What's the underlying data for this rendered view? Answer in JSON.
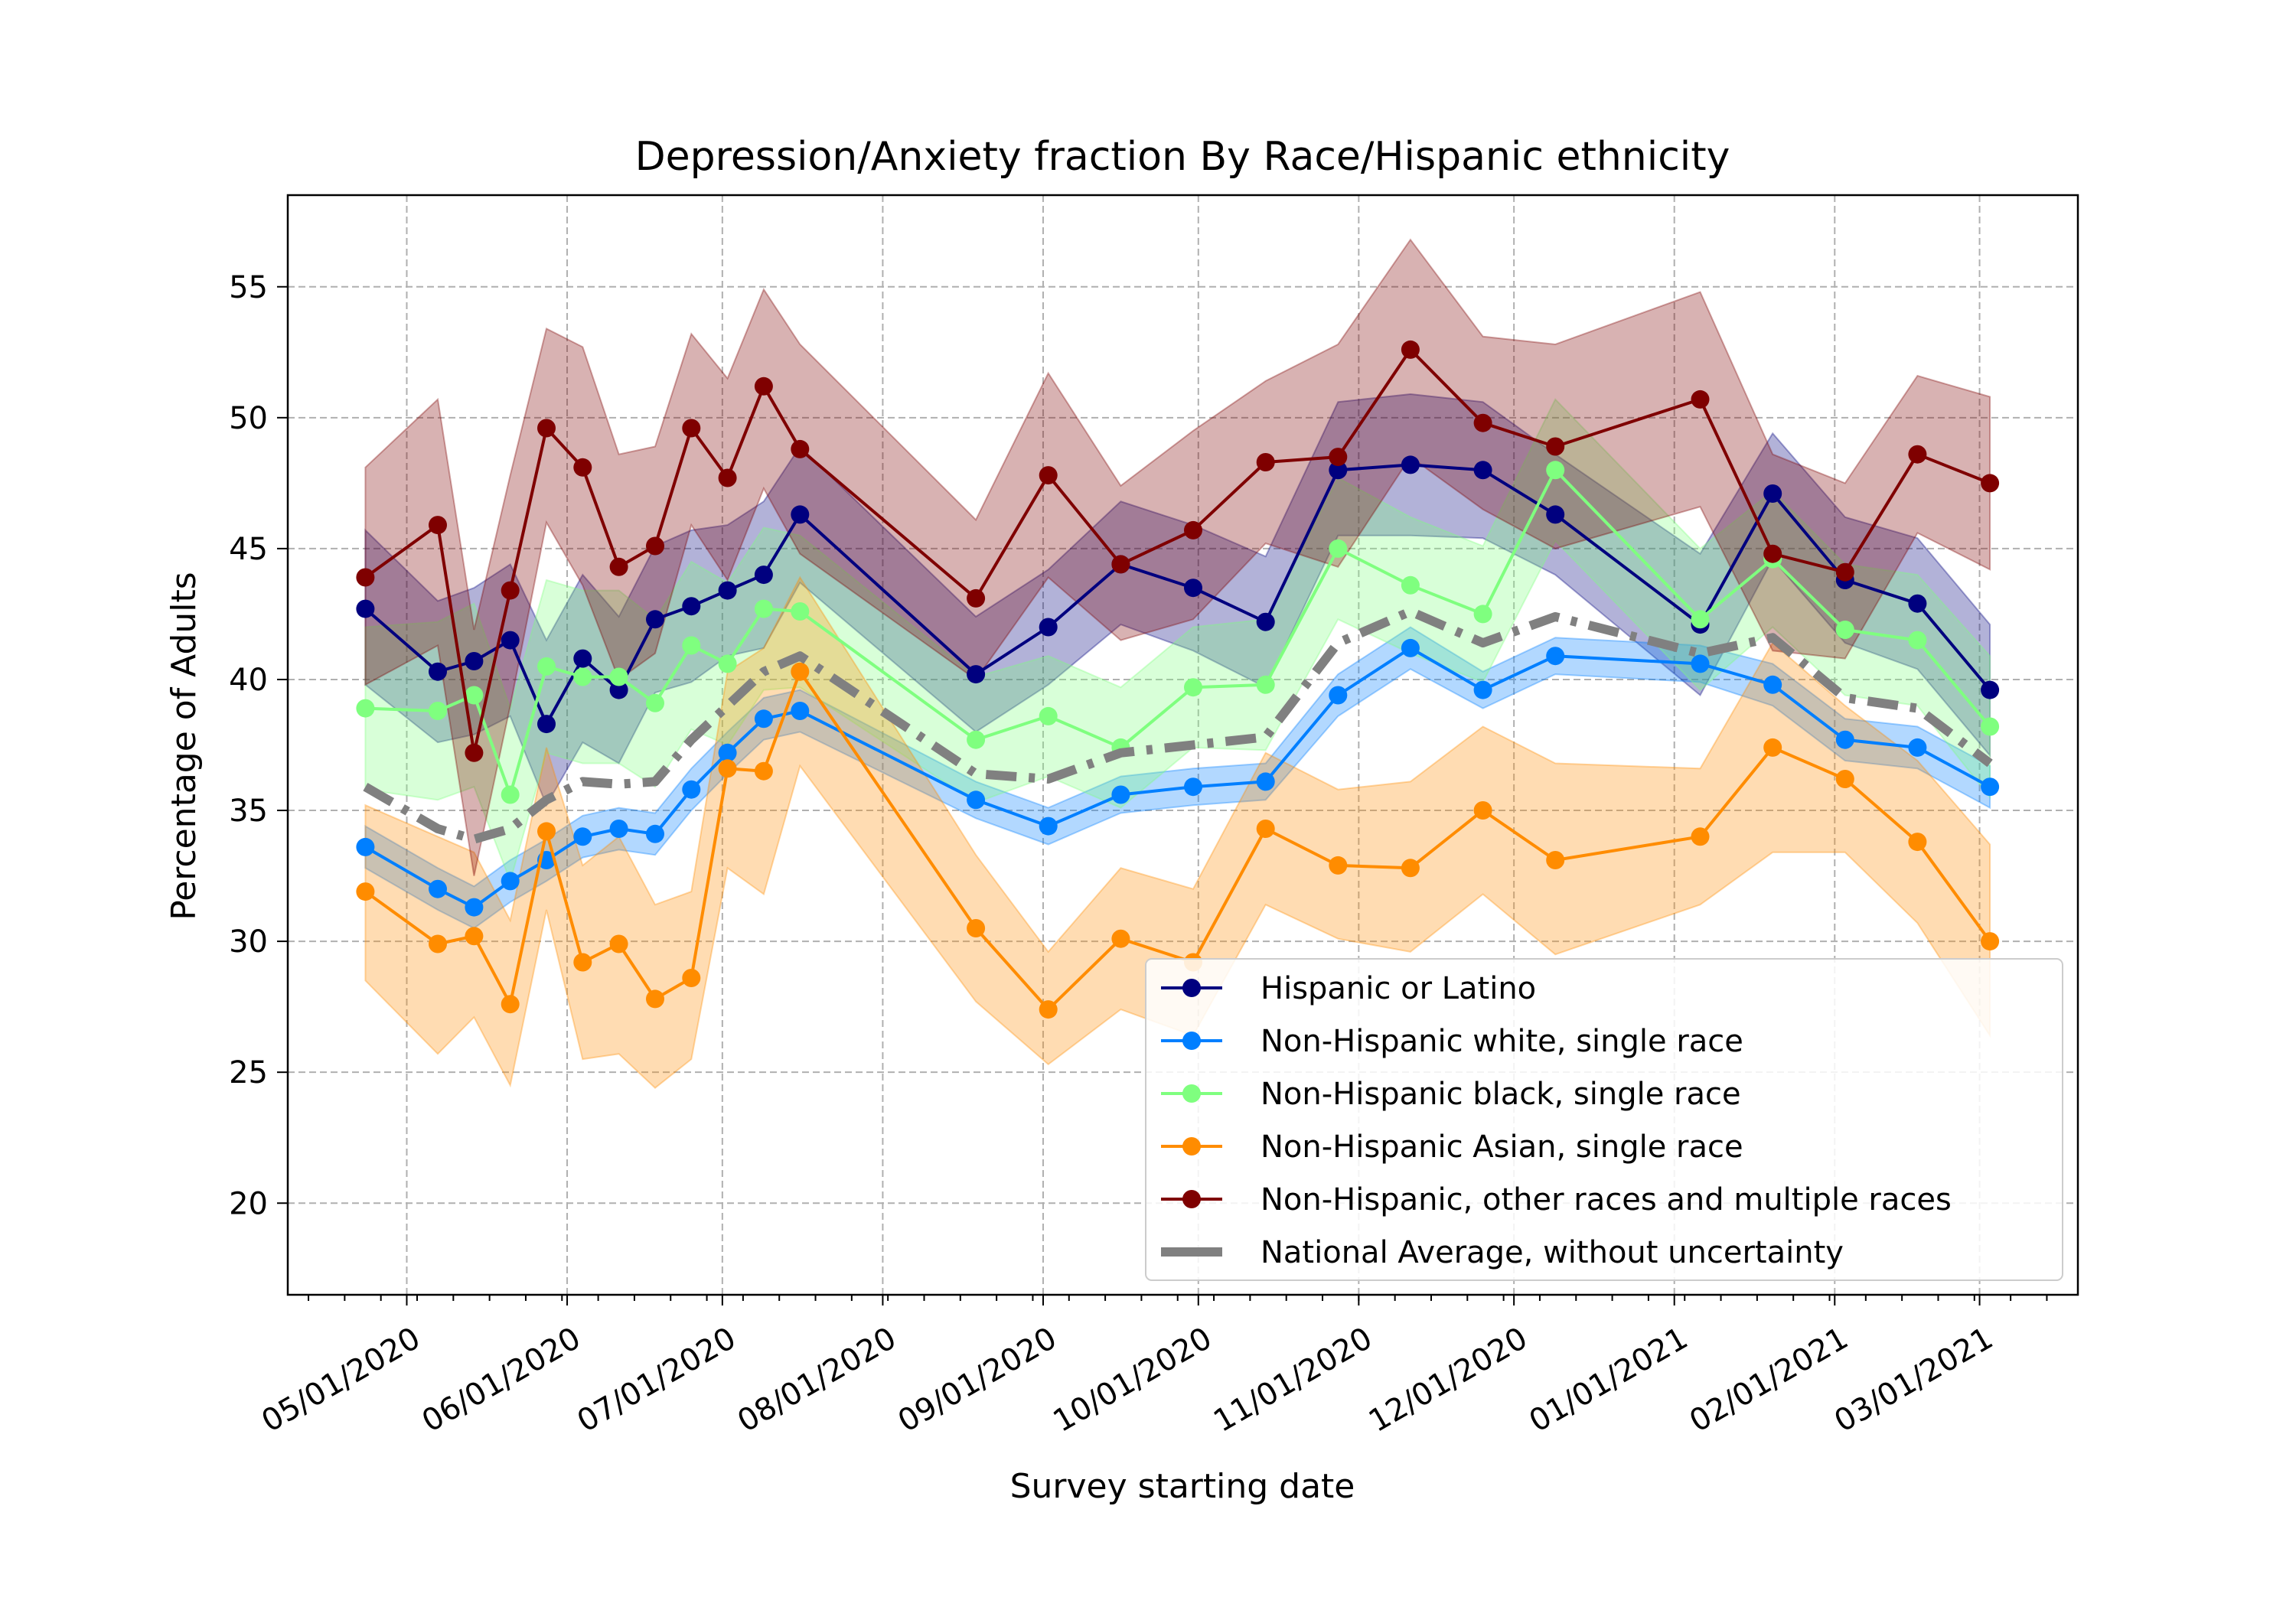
{
  "chart_data": {
    "type": "line",
    "title": "Depression/Anxiety fraction By Race/Hispanic ethnicity",
    "xlabel": "Survey starting date",
    "ylabel": "Percentage of Adults",
    "ylim": [
      16.5,
      58.5
    ],
    "xlim": [
      "2020-04-08",
      "2021-03-20"
    ],
    "grid": true,
    "legend_position": "lower-right",
    "yticks": [
      20,
      25,
      30,
      35,
      40,
      45,
      50,
      55
    ],
    "xticks": [
      {
        "date": "2020-05-01",
        "label": "05/01/2020"
      },
      {
        "date": "2020-06-01",
        "label": "06/01/2020"
      },
      {
        "date": "2020-07-01",
        "label": "07/01/2020"
      },
      {
        "date": "2020-08-01",
        "label": "08/01/2020"
      },
      {
        "date": "2020-09-01",
        "label": "09/01/2020"
      },
      {
        "date": "2020-10-01",
        "label": "10/01/2020"
      },
      {
        "date": "2020-11-01",
        "label": "11/01/2020"
      },
      {
        "date": "2020-12-01",
        "label": "12/01/2020"
      },
      {
        "date": "2021-01-01",
        "label": "01/01/2021"
      },
      {
        "date": "2021-02-01",
        "label": "02/01/2021"
      },
      {
        "date": "2021-03-01",
        "label": "03/01/2021"
      }
    ],
    "x": [
      "2020-04-23",
      "2020-05-07",
      "2020-05-14",
      "2020-05-21",
      "2020-05-28",
      "2020-06-04",
      "2020-06-11",
      "2020-06-18",
      "2020-06-25",
      "2020-07-02",
      "2020-07-09",
      "2020-07-16",
      "2020-08-19",
      "2020-09-02",
      "2020-09-16",
      "2020-09-30",
      "2020-10-14",
      "2020-10-28",
      "2020-11-11",
      "2020-11-25",
      "2020-12-09",
      "2021-01-06",
      "2021-01-20",
      "2021-02-03",
      "2021-02-17",
      "2021-03-03"
    ],
    "series": [
      {
        "name": "Hispanic or Latino",
        "color": "#00007f",
        "values": [
          42.7,
          40.3,
          40.7,
          41.5,
          38.3,
          40.8,
          39.6,
          42.3,
          42.8,
          43.4,
          44.0,
          46.3,
          40.2,
          42.0,
          44.4,
          43.5,
          42.2,
          48.0,
          48.2,
          48.0,
          46.3,
          42.1,
          47.1,
          43.8,
          42.9,
          39.6
        ],
        "lower": [
          39.8,
          37.6,
          37.9,
          38.6,
          35.2,
          37.6,
          36.8,
          39.5,
          39.9,
          40.9,
          41.2,
          43.7,
          38.0,
          39.8,
          42.1,
          41.1,
          39.7,
          45.5,
          45.5,
          45.4,
          44.0,
          39.4,
          44.6,
          41.4,
          40.4,
          37.1
        ],
        "upper": [
          45.7,
          43.0,
          43.5,
          44.4,
          41.5,
          44.0,
          42.4,
          45.1,
          45.7,
          45.9,
          46.8,
          48.9,
          42.4,
          44.2,
          46.8,
          45.9,
          44.7,
          50.6,
          50.9,
          50.6,
          48.6,
          44.8,
          49.4,
          46.2,
          45.4,
          42.1
        ]
      },
      {
        "name": "Non-Hispanic white, single race",
        "color": "#007fff",
        "values": [
          33.6,
          32.0,
          31.3,
          32.3,
          33.1,
          34.0,
          34.3,
          34.1,
          35.8,
          37.2,
          38.5,
          38.8,
          35.4,
          34.4,
          35.6,
          35.9,
          36.1,
          39.4,
          41.2,
          39.6,
          40.9,
          40.6,
          39.8,
          37.7,
          37.4,
          35.9
        ],
        "lower": [
          32.8,
          31.2,
          30.5,
          31.5,
          32.3,
          33.2,
          33.5,
          33.3,
          35.0,
          36.4,
          37.7,
          38.0,
          34.7,
          33.7,
          34.9,
          35.2,
          35.4,
          38.6,
          40.4,
          38.9,
          40.2,
          39.9,
          39.0,
          36.9,
          36.6,
          35.1
        ],
        "upper": [
          34.4,
          32.8,
          32.1,
          33.1,
          33.9,
          34.8,
          35.1,
          34.9,
          36.6,
          38.0,
          39.3,
          39.6,
          36.1,
          35.1,
          36.3,
          36.6,
          36.8,
          40.2,
          42.0,
          40.3,
          41.6,
          41.3,
          40.6,
          38.5,
          38.2,
          36.7
        ]
      },
      {
        "name": "Non-Hispanic black, single race",
        "color": "#7fff7f",
        "values": [
          38.9,
          38.8,
          39.4,
          35.6,
          40.5,
          40.1,
          40.1,
          39.1,
          41.3,
          40.6,
          42.7,
          42.6,
          37.7,
          38.6,
          37.4,
          39.7,
          39.8,
          45.0,
          43.6,
          42.5,
          48.0,
          42.3,
          44.6,
          41.9,
          41.5,
          38.2
        ],
        "lower": [
          35.8,
          35.4,
          35.9,
          32.3,
          37.2,
          36.8,
          36.8,
          35.9,
          38.1,
          37.5,
          39.6,
          39.7,
          35.3,
          36.3,
          35.1,
          37.4,
          37.3,
          42.3,
          41.0,
          39.9,
          45.3,
          39.6,
          42.0,
          39.4,
          39.0,
          35.5
        ],
        "upper": [
          42.0,
          42.2,
          42.9,
          38.9,
          43.8,
          43.4,
          43.4,
          42.3,
          44.5,
          43.7,
          45.8,
          45.5,
          40.1,
          40.9,
          39.7,
          42.0,
          42.3,
          47.7,
          46.2,
          45.1,
          50.7,
          45.0,
          47.2,
          44.4,
          44.0,
          40.9
        ]
      },
      {
        "name": "Non-Hispanic Asian, single race",
        "color": "#ff8c00",
        "values": [
          31.9,
          29.9,
          30.2,
          27.6,
          34.2,
          29.2,
          29.9,
          27.8,
          28.6,
          36.6,
          36.5,
          40.3,
          30.5,
          27.4,
          30.1,
          29.2,
          34.3,
          32.9,
          32.8,
          35.0,
          33.1,
          34.0,
          37.4,
          36.2,
          33.8,
          30.0
        ],
        "lower": [
          28.5,
          25.7,
          27.1,
          24.5,
          31.2,
          25.5,
          25.7,
          24.4,
          25.5,
          32.8,
          31.8,
          36.7,
          27.7,
          25.3,
          27.4,
          26.4,
          31.4,
          30.1,
          29.6,
          31.8,
          29.5,
          31.4,
          33.4,
          33.4,
          30.7,
          26.4
        ],
        "upper": [
          35.2,
          34.0,
          33.4,
          30.8,
          37.4,
          32.9,
          34.0,
          31.4,
          31.9,
          40.3,
          41.2,
          43.9,
          33.3,
          29.6,
          32.8,
          32.0,
          37.2,
          35.8,
          36.1,
          38.2,
          36.8,
          36.6,
          41.4,
          39.0,
          36.9,
          33.7
        ]
      },
      {
        "name": "Non-Hispanic, other races and multiple races",
        "color": "#7f0000",
        "values": [
          43.9,
          45.9,
          37.2,
          43.4,
          49.6,
          48.1,
          44.3,
          45.1,
          49.6,
          47.7,
          51.2,
          48.8,
          43.1,
          47.8,
          44.4,
          45.7,
          48.3,
          48.5,
          52.6,
          49.8,
          48.9,
          50.7,
          44.8,
          44.1,
          48.6,
          47.5
        ],
        "lower": [
          39.8,
          41.3,
          32.5,
          39.0,
          46.0,
          43.6,
          40.0,
          41.0,
          45.9,
          43.8,
          47.3,
          44.8,
          40.0,
          43.9,
          41.5,
          42.3,
          45.2,
          44.3,
          48.5,
          46.5,
          45.0,
          46.6,
          41.1,
          40.8,
          45.6,
          44.2
        ],
        "upper": [
          48.1,
          50.7,
          41.9,
          47.8,
          53.4,
          52.7,
          48.6,
          48.9,
          53.2,
          51.5,
          54.9,
          52.8,
          46.1,
          51.7,
          47.4,
          49.5,
          51.4,
          52.8,
          56.8,
          53.1,
          52.8,
          54.8,
          48.6,
          47.5,
          51.6,
          50.8
        ]
      },
      {
        "name": "National Average, without uncertainty",
        "color": "#808080",
        "values": [
          35.9,
          34.3,
          33.9,
          34.3,
          35.4,
          36.1,
          36.0,
          36.1,
          37.7,
          39.0,
          40.3,
          40.9,
          36.4,
          36.2,
          37.2,
          37.5,
          37.8,
          41.4,
          42.6,
          41.4,
          42.4,
          41.0,
          41.6,
          39.3,
          38.9,
          36.8
        ]
      }
    ]
  }
}
